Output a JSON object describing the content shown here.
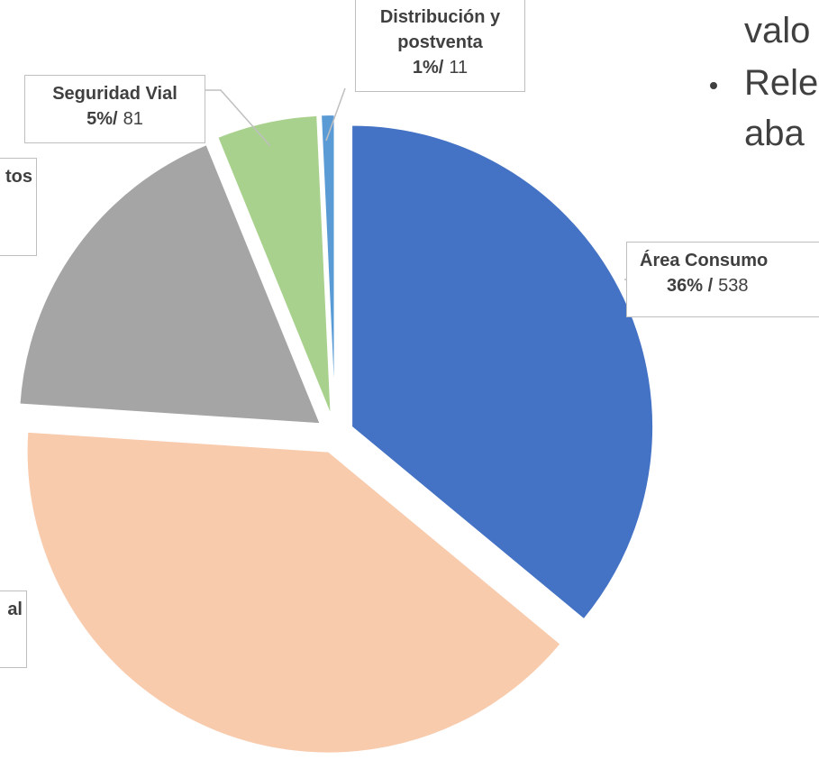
{
  "chart_data": {
    "type": "pie",
    "categories": [
      "Área Consumo",
      "al",
      "tos",
      "Seguridad Vial",
      "Distribución y postventa"
    ],
    "values": [
      538,
      598,
      266,
      81,
      11
    ],
    "percent_labels": [
      "36% /",
      null,
      null,
      "5%/",
      "1%/"
    ],
    "colors": [
      "#4472c4",
      "#f8cbad",
      "#a5a5a5",
      "#a9d18e",
      "#5b9bd5"
    ]
  },
  "side_text": [
    "valo",
    "Rele",
    "aba"
  ]
}
